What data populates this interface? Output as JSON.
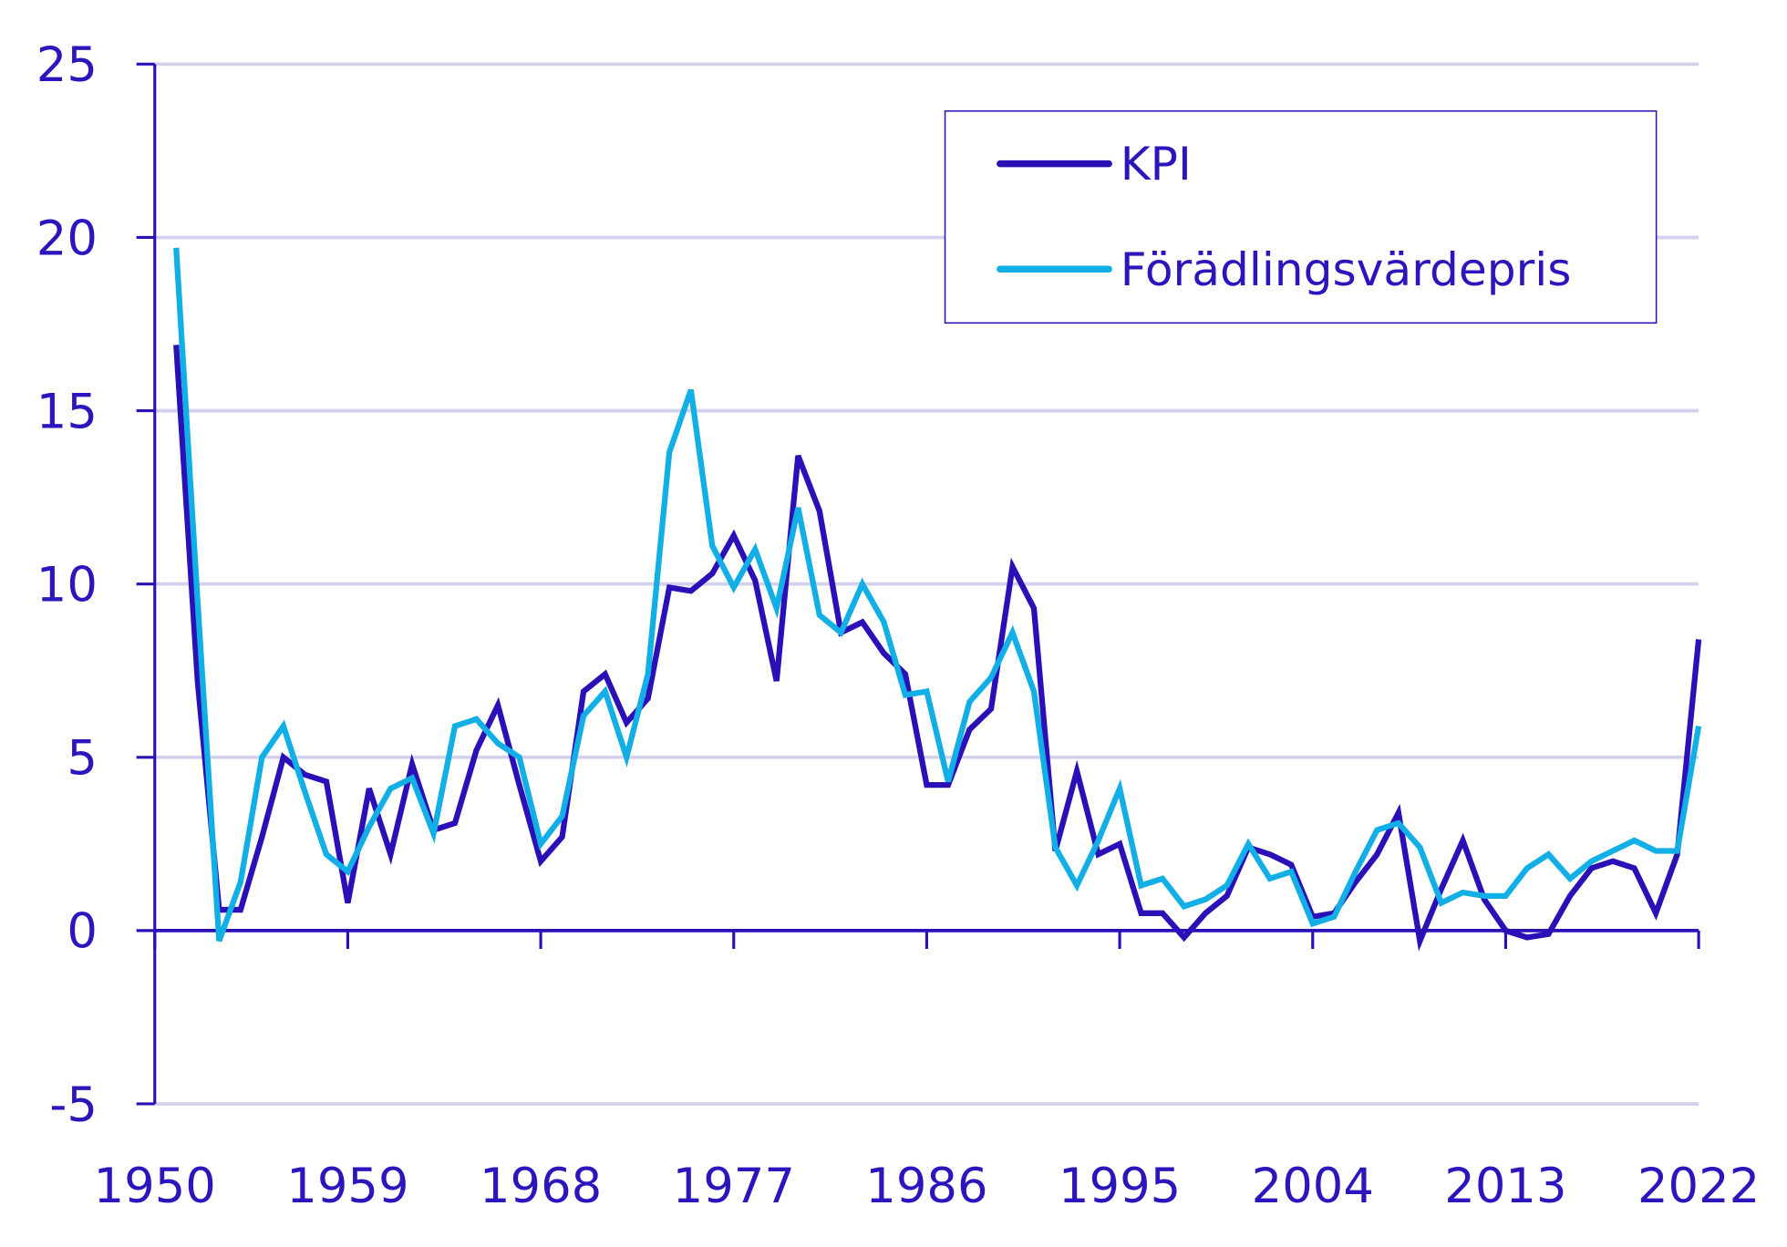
{
  "chart_data": {
    "type": "line",
    "title": "",
    "xlabel": "",
    "ylabel": "",
    "x": [
      1951,
      1952,
      1953,
      1954,
      1955,
      1956,
      1957,
      1958,
      1959,
      1960,
      1961,
      1962,
      1963,
      1964,
      1965,
      1966,
      1967,
      1968,
      1969,
      1970,
      1971,
      1972,
      1973,
      1974,
      1975,
      1976,
      1977,
      1978,
      1979,
      1980,
      1981,
      1982,
      1983,
      1984,
      1985,
      1986,
      1987,
      1988,
      1989,
      1990,
      1991,
      1992,
      1993,
      1994,
      1995,
      1996,
      1997,
      1998,
      1999,
      2000,
      2001,
      2002,
      2003,
      2004,
      2005,
      2006,
      2007,
      2008,
      2009,
      2010,
      2011,
      2012,
      2013,
      2014,
      2015,
      2016,
      2017,
      2018,
      2019,
      2020,
      2021,
      2022
    ],
    "xlim": [
      1950,
      2022
    ],
    "ylim": [
      -5,
      25
    ],
    "x_ticks": [
      "1950",
      "1959",
      "1968",
      "1977",
      "1986",
      "1995",
      "2004",
      "2013",
      "2022"
    ],
    "y_ticks": [
      "-5",
      "0",
      "5",
      "10",
      "15",
      "20",
      "25"
    ],
    "grid": "horizontal",
    "legend_position": "top-right",
    "series": [
      {
        "name": "KPI",
        "color": "#2b10b8",
        "values": [
          16.9,
          7.2,
          0.6,
          0.6,
          2.7,
          5.0,
          4.5,
          4.3,
          0.8,
          4.1,
          2.2,
          4.8,
          2.9,
          3.1,
          5.2,
          6.5,
          4.2,
          2.0,
          2.7,
          6.9,
          7.4,
          6.0,
          6.7,
          9.9,
          9.8,
          10.3,
          11.4,
          10.1,
          7.2,
          13.7,
          12.1,
          8.6,
          8.9,
          8.0,
          7.4,
          4.2,
          4.2,
          5.8,
          6.4,
          10.5,
          9.3,
          2.3,
          4.6,
          2.2,
          2.5,
          0.5,
          0.5,
          -0.2,
          0.5,
          1.0,
          2.4,
          2.2,
          1.9,
          0.4,
          0.5,
          1.4,
          2.2,
          3.4,
          -0.3,
          1.2,
          2.6,
          0.9,
          0.0,
          -0.2,
          -0.1,
          1.0,
          1.8,
          2.0,
          1.8,
          0.5,
          2.2,
          8.4
        ]
      },
      {
        "name": "Förädlingsvärdepris",
        "color": "#12aee6",
        "values": [
          19.7,
          9.5,
          -0.3,
          1.4,
          5.0,
          5.9,
          4.0,
          2.2,
          1.7,
          3.0,
          4.1,
          4.4,
          2.8,
          5.9,
          6.1,
          5.4,
          5.0,
          2.5,
          3.3,
          6.2,
          6.9,
          5.0,
          7.4,
          13.8,
          15.6,
          11.1,
          9.9,
          11.0,
          9.3,
          12.2,
          9.1,
          8.6,
          10.0,
          8.9,
          6.8,
          6.9,
          4.3,
          6.6,
          7.3,
          8.6,
          6.9,
          2.4,
          1.3,
          2.6,
          4.1,
          1.3,
          1.5,
          0.7,
          0.9,
          1.3,
          2.5,
          1.5,
          1.7,
          0.2,
          0.4,
          1.7,
          2.9,
          3.1,
          2.4,
          0.8,
          1.1,
          1.0,
          1.0,
          1.8,
          2.2,
          1.5,
          2.0,
          2.3,
          2.6,
          2.3,
          2.3,
          5.9
        ]
      }
    ],
    "colors": {
      "axis": "#2b10b8",
      "text": "#2a16bc",
      "grid": "#d3d1ee"
    }
  }
}
